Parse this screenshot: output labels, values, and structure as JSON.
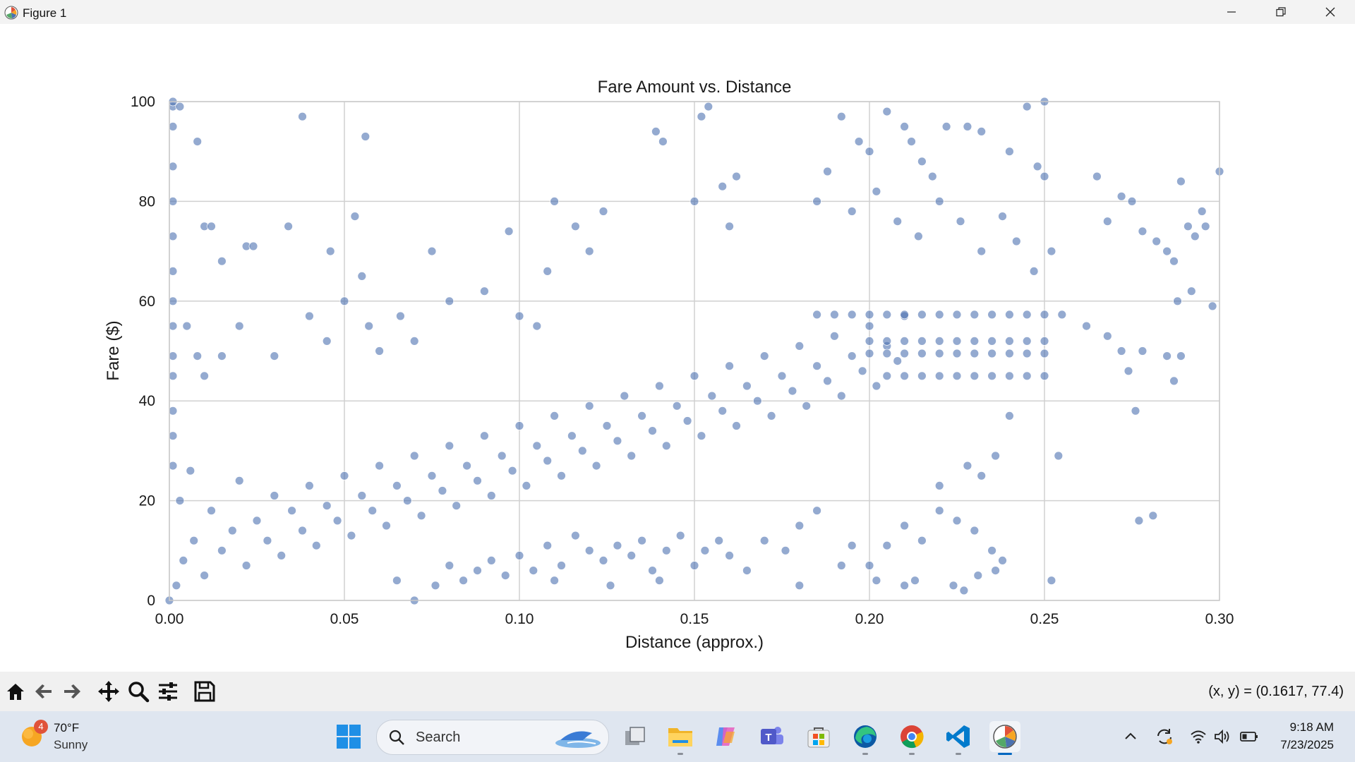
{
  "window": {
    "title": "Figure 1"
  },
  "toolbar": {
    "buttons": [
      "home-icon",
      "back-icon",
      "forward-icon",
      "pan-icon",
      "zoom-icon",
      "configure-icon",
      "save-icon"
    ],
    "coordinate_readout": "(x, y) = (0.1617, 77.4)"
  },
  "taskbar": {
    "weather": {
      "badge": "4",
      "temp": "70°F",
      "condition": "Sunny"
    },
    "search_label": "Search",
    "clock": {
      "time": "9:18 AM",
      "date": "7/23/2025"
    }
  },
  "colors": {
    "point": "#4c72b0",
    "grid": "#d0d0d0",
    "accent": "#0067c0"
  },
  "chart_data": {
    "type": "scatter",
    "title": "Fare Amount vs. Distance",
    "xlabel": "Distance (approx.)",
    "ylabel": "Fare ($)",
    "xlim": [
      0,
      0.3
    ],
    "ylim": [
      0,
      100
    ],
    "xticks": [
      "0.00",
      "0.05",
      "0.10",
      "0.15",
      "0.20",
      "0.25",
      "0.30"
    ],
    "yticks": [
      "0",
      "20",
      "40",
      "60",
      "80",
      "100"
    ],
    "grid": true,
    "series": [
      {
        "color": "#4c72b0",
        "points": [
          [
            0.001,
            99
          ],
          [
            0.001,
            95
          ],
          [
            0.003,
            99
          ],
          [
            0.008,
            92
          ],
          [
            0.038,
            97
          ],
          [
            0.056,
            93
          ],
          [
            0.01,
            75
          ],
          [
            0.012,
            75
          ],
          [
            0.034,
            75
          ],
          [
            0.022,
            71
          ],
          [
            0.024,
            71
          ],
          [
            0.046,
            70
          ],
          [
            0.053,
            77
          ],
          [
            0.015,
            68
          ],
          [
            0.055,
            65
          ],
          [
            0.075,
            70
          ],
          [
            0.108,
            66
          ],
          [
            0.097,
            74
          ],
          [
            0.11,
            80
          ],
          [
            0.116,
            75
          ],
          [
            0.12,
            70
          ],
          [
            0.124,
            78
          ],
          [
            0.139,
            94
          ],
          [
            0.141,
            92
          ],
          [
            0.152,
            97
          ],
          [
            0.154,
            99
          ],
          [
            0.15,
            80
          ],
          [
            0.158,
            83
          ],
          [
            0.162,
            85
          ],
          [
            0.16,
            75
          ],
          [
            0.001,
            55
          ],
          [
            0.001,
            49
          ],
          [
            0.001,
            45
          ],
          [
            0.005,
            55
          ],
          [
            0.008,
            49
          ],
          [
            0.01,
            45
          ],
          [
            0.015,
            49
          ],
          [
            0.02,
            55
          ],
          [
            0.03,
            49
          ],
          [
            0.04,
            57
          ],
          [
            0.045,
            52
          ],
          [
            0.05,
            60
          ],
          [
            0.057,
            55
          ],
          [
            0.06,
            50
          ],
          [
            0.066,
            57
          ],
          [
            0.07,
            52
          ],
          [
            0.08,
            60
          ],
          [
            0.09,
            62
          ],
          [
            0.1,
            57
          ],
          [
            0.105,
            55
          ],
          [
            0.002,
            3
          ],
          [
            0.003,
            20
          ],
          [
            0.004,
            8
          ],
          [
            0.006,
            26
          ],
          [
            0.007,
            12
          ],
          [
            0.01,
            5
          ],
          [
            0.012,
            18
          ],
          [
            0.015,
            10
          ],
          [
            0.018,
            14
          ],
          [
            0.02,
            24
          ],
          [
            0.022,
            7
          ],
          [
            0.025,
            16
          ],
          [
            0.028,
            12
          ],
          [
            0.03,
            21
          ],
          [
            0.032,
            9
          ],
          [
            0.035,
            18
          ],
          [
            0.038,
            14
          ],
          [
            0.04,
            23
          ],
          [
            0.042,
            11
          ],
          [
            0.045,
            19
          ],
          [
            0.048,
            16
          ],
          [
            0.05,
            25
          ],
          [
            0.052,
            13
          ],
          [
            0.055,
            21
          ],
          [
            0.058,
            18
          ],
          [
            0.06,
            27
          ],
          [
            0.062,
            15
          ],
          [
            0.065,
            23
          ],
          [
            0.068,
            20
          ],
          [
            0.07,
            29
          ],
          [
            0.072,
            17
          ],
          [
            0.075,
            25
          ],
          [
            0.078,
            22
          ],
          [
            0.08,
            31
          ],
          [
            0.082,
            19
          ],
          [
            0.085,
            27
          ],
          [
            0.088,
            24
          ],
          [
            0.09,
            33
          ],
          [
            0.092,
            21
          ],
          [
            0.095,
            29
          ],
          [
            0.098,
            26
          ],
          [
            0.1,
            35
          ],
          [
            0.102,
            23
          ],
          [
            0.105,
            31
          ],
          [
            0.108,
            28
          ],
          [
            0.11,
            37
          ],
          [
            0.112,
            25
          ],
          [
            0.115,
            33
          ],
          [
            0.118,
            30
          ],
          [
            0.12,
            39
          ],
          [
            0.122,
            27
          ],
          [
            0.125,
            35
          ],
          [
            0.128,
            32
          ],
          [
            0.13,
            41
          ],
          [
            0.132,
            29
          ],
          [
            0.135,
            37
          ],
          [
            0.138,
            34
          ],
          [
            0.14,
            43
          ],
          [
            0.142,
            31
          ],
          [
            0.145,
            39
          ],
          [
            0.148,
            36
          ],
          [
            0.15,
            45
          ],
          [
            0.152,
            33
          ],
          [
            0.155,
            41
          ],
          [
            0.158,
            38
          ],
          [
            0.16,
            47
          ],
          [
            0.162,
            35
          ],
          [
            0.165,
            43
          ],
          [
            0.168,
            40
          ],
          [
            0.17,
            49
          ],
          [
            0.172,
            37
          ],
          [
            0.175,
            45
          ],
          [
            0.178,
            42
          ],
          [
            0.18,
            51
          ],
          [
            0.182,
            39
          ],
          [
            0.185,
            47
          ],
          [
            0.188,
            44
          ],
          [
            0.19,
            53
          ],
          [
            0.192,
            41
          ],
          [
            0.195,
            49
          ],
          [
            0.198,
            46
          ],
          [
            0.2,
            55
          ],
          [
            0.202,
            43
          ],
          [
            0.205,
            51
          ],
          [
            0.208,
            48
          ],
          [
            0.21,
            57
          ],
          [
            0.185,
            57.3
          ],
          [
            0.19,
            57.3
          ],
          [
            0.195,
            57.3
          ],
          [
            0.2,
            57.3
          ],
          [
            0.205,
            57.3
          ],
          [
            0.21,
            57.3
          ],
          [
            0.215,
            57.3
          ],
          [
            0.22,
            57.3
          ],
          [
            0.225,
            57.3
          ],
          [
            0.23,
            57.3
          ],
          [
            0.235,
            57.3
          ],
          [
            0.24,
            57.3
          ],
          [
            0.245,
            57.3
          ],
          [
            0.25,
            57.3
          ],
          [
            0.255,
            57.3
          ],
          [
            0.2,
            52
          ],
          [
            0.205,
            52
          ],
          [
            0.21,
            52
          ],
          [
            0.215,
            52
          ],
          [
            0.22,
            52
          ],
          [
            0.225,
            52
          ],
          [
            0.23,
            52
          ],
          [
            0.235,
            52
          ],
          [
            0.24,
            52
          ],
          [
            0.245,
            52
          ],
          [
            0.25,
            52
          ],
          [
            0.2,
            49.5
          ],
          [
            0.205,
            49.5
          ],
          [
            0.21,
            49.5
          ],
          [
            0.215,
            49.5
          ],
          [
            0.22,
            49.5
          ],
          [
            0.225,
            49.5
          ],
          [
            0.23,
            49.5
          ],
          [
            0.235,
            49.5
          ],
          [
            0.24,
            49.5
          ],
          [
            0.245,
            49.5
          ],
          [
            0.25,
            49.5
          ],
          [
            0.205,
            45
          ],
          [
            0.21,
            45
          ],
          [
            0.215,
            45
          ],
          [
            0.22,
            45
          ],
          [
            0.225,
            45
          ],
          [
            0.23,
            45
          ],
          [
            0.235,
            45
          ],
          [
            0.24,
            45
          ],
          [
            0.245,
            45
          ],
          [
            0.25,
            45
          ],
          [
            0.2,
            90
          ],
          [
            0.205,
            98
          ],
          [
            0.21,
            95
          ],
          [
            0.212,
            92
          ],
          [
            0.215,
            88
          ],
          [
            0.218,
            85
          ],
          [
            0.222,
            95
          ],
          [
            0.228,
            95
          ],
          [
            0.232,
            94
          ],
          [
            0.24,
            90
          ],
          [
            0.245,
            99
          ],
          [
            0.25,
            100
          ],
          [
            0.248,
            87
          ],
          [
            0.25,
            85
          ],
          [
            0.192,
            97
          ],
          [
            0.197,
            92
          ],
          [
            0.188,
            86
          ],
          [
            0.185,
            80
          ],
          [
            0.195,
            78
          ],
          [
            0.202,
            82
          ],
          [
            0.208,
            76
          ],
          [
            0.214,
            73
          ],
          [
            0.22,
            80
          ],
          [
            0.226,
            76
          ],
          [
            0.232,
            70
          ],
          [
            0.238,
            77
          ],
          [
            0.242,
            72
          ],
          [
            0.247,
            66
          ],
          [
            0.252,
            70
          ],
          [
            0.265,
            85
          ],
          [
            0.268,
            76
          ],
          [
            0.272,
            81
          ],
          [
            0.275,
            80
          ],
          [
            0.278,
            74
          ],
          [
            0.282,
            72
          ],
          [
            0.285,
            70
          ],
          [
            0.287,
            68
          ],
          [
            0.289,
            84
          ],
          [
            0.291,
            75
          ],
          [
            0.293,
            73
          ],
          [
            0.295,
            78
          ],
          [
            0.296,
            75
          ],
          [
            0.298,
            59
          ],
          [
            0.3,
            86
          ],
          [
            0.288,
            60
          ],
          [
            0.292,
            62
          ],
          [
            0.262,
            55
          ],
          [
            0.268,
            53
          ],
          [
            0.272,
            50
          ],
          [
            0.274,
            46
          ],
          [
            0.276,
            38
          ],
          [
            0.278,
            50
          ],
          [
            0.285,
            49
          ],
          [
            0.289,
            49
          ],
          [
            0.287,
            44
          ],
          [
            0.254,
            29
          ],
          [
            0.252,
            4
          ],
          [
            0.277,
            16
          ],
          [
            0.281,
            17
          ],
          [
            0.232,
            25
          ],
          [
            0.236,
            29
          ],
          [
            0.24,
            37
          ],
          [
            0.22,
            23
          ],
          [
            0.228,
            27
          ],
          [
            0.21,
            15
          ],
          [
            0.215,
            12
          ],
          [
            0.22,
            18
          ],
          [
            0.225,
            16
          ],
          [
            0.23,
            14
          ],
          [
            0.235,
            10
          ],
          [
            0.238,
            8
          ],
          [
            0.205,
            11
          ],
          [
            0.2,
            7
          ],
          [
            0.195,
            11
          ],
          [
            0.192,
            7
          ],
          [
            0.185,
            18
          ],
          [
            0.18,
            15
          ],
          [
            0.176,
            10
          ],
          [
            0.17,
            12
          ],
          [
            0.165,
            6
          ],
          [
            0.16,
            9
          ],
          [
            0.157,
            12
          ],
          [
            0.153,
            10
          ],
          [
            0.15,
            7
          ],
          [
            0.146,
            13
          ],
          [
            0.142,
            10
          ],
          [
            0.138,
            6
          ],
          [
            0.135,
            12
          ],
          [
            0.132,
            9
          ],
          [
            0.128,
            11
          ],
          [
            0.124,
            8
          ],
          [
            0.12,
            10
          ],
          [
            0.116,
            13
          ],
          [
            0.112,
            7
          ],
          [
            0.108,
            11
          ],
          [
            0.104,
            6
          ],
          [
            0.1,
            9
          ],
          [
            0.096,
            5
          ],
          [
            0.092,
            8
          ],
          [
            0.088,
            6
          ],
          [
            0.084,
            4
          ],
          [
            0.08,
            7
          ],
          [
            0.076,
            3
          ],
          [
            0.07,
            0
          ],
          [
            0.065,
            4
          ],
          [
            0.11,
            4
          ],
          [
            0.126,
            3
          ],
          [
            0.14,
            4
          ],
          [
            0.18,
            3
          ],
          [
            0.202,
            4
          ],
          [
            0.21,
            3
          ],
          [
            0.213,
            4
          ],
          [
            0.224,
            3
          ],
          [
            0.227,
            2
          ],
          [
            0.231,
            5
          ],
          [
            0.236,
            6
          ],
          [
            0.001,
            100
          ],
          [
            0.001,
            87
          ],
          [
            0.001,
            80
          ],
          [
            0.001,
            73
          ],
          [
            0.001,
            66
          ],
          [
            0.001,
            60
          ],
          [
            0.001,
            38
          ],
          [
            0.001,
            33
          ],
          [
            0.001,
            27
          ],
          [
            0.0,
            0
          ]
        ]
      }
    ]
  }
}
